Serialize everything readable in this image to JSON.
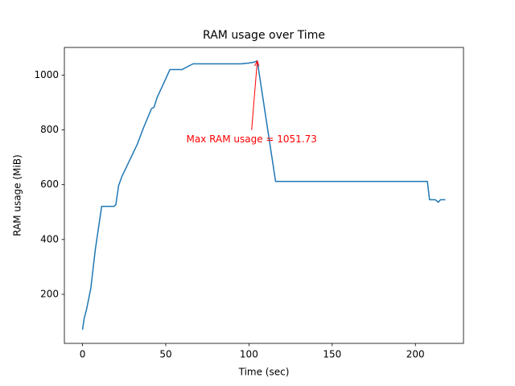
{
  "chart_data": {
    "type": "line",
    "title": "RAM usage over Time",
    "xlabel": "Time (sec)",
    "ylabel": "RAM usage (MiB)",
    "x": [
      0,
      1,
      2.4,
      5,
      7.7,
      11.5,
      19,
      20,
      21.7,
      23.6,
      28,
      33,
      36.6,
      41.4,
      43,
      44.8,
      48.6,
      52.5,
      59.7,
      66.4,
      95.3,
      100,
      103,
      105,
      116,
      206,
      207.2,
      208.5,
      212,
      213.8,
      215,
      218
    ],
    "series": [
      {
        "color": "#1f77b4",
        "values": [
          71,
          112,
          144,
          223,
          364,
          521,
          521,
          527,
          597,
          629,
          685,
          749,
          807,
          877,
          883,
          918,
          968,
          1020,
          1020,
          1041,
          1041,
          1044,
          1047,
          1051.73,
          612,
          612,
          612,
          545,
          545,
          536,
          545,
          545
        ]
      }
    ],
    "xlim": [
      -10.9,
      228.9
    ],
    "ylim": [
      21,
      1100.8
    ],
    "xticks": [
      0,
      50,
      100,
      150,
      200
    ],
    "yticks": [
      200,
      400,
      600,
      800,
      1000
    ],
    "annotation": {
      "text": "Max RAM usage = 1051.73",
      "color": "#ff0000",
      "x": 105,
      "y": 1051.73
    }
  }
}
